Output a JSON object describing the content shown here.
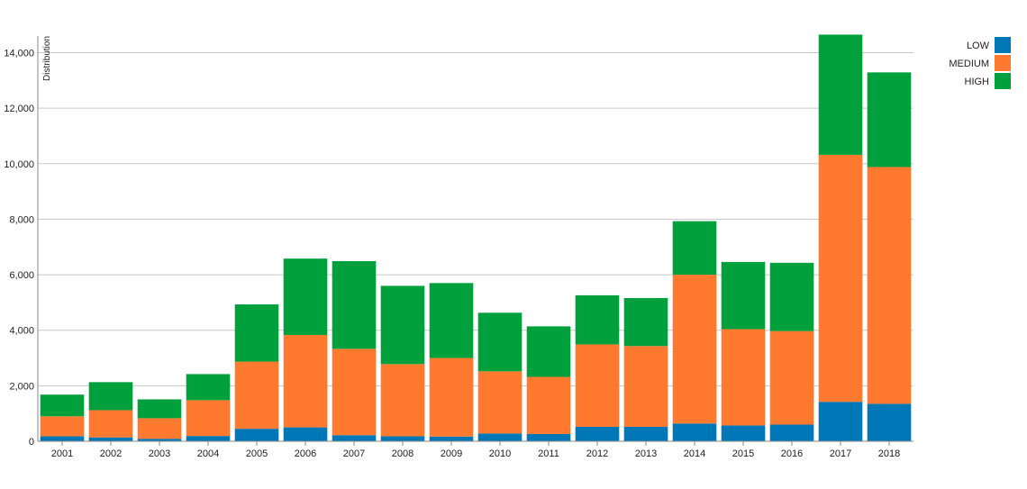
{
  "chart_data": {
    "type": "bar",
    "stacked": true,
    "categories": [
      "2001",
      "2002",
      "2003",
      "2004",
      "2005",
      "2006",
      "2007",
      "2008",
      "2009",
      "2010",
      "2011",
      "2012",
      "2013",
      "2014",
      "2015",
      "2016",
      "2017",
      "2018"
    ],
    "series": [
      {
        "name": "LOW",
        "color": "#0077b6",
        "values": [
          180,
          140,
          90,
          190,
          450,
          500,
          220,
          180,
          170,
          280,
          260,
          520,
          520,
          640,
          570,
          600,
          1420,
          1350
        ]
      },
      {
        "name": "MEDIUM",
        "color": "#ff7a2f",
        "values": [
          720,
          980,
          740,
          1290,
          2420,
          3330,
          3110,
          2600,
          2830,
          2240,
          2060,
          2970,
          2910,
          5360,
          3470,
          3370,
          8900,
          8530
        ]
      },
      {
        "name": "HIGH",
        "color": "#00a03c",
        "values": [
          780,
          1010,
          680,
          940,
          2060,
          2750,
          3160,
          2820,
          2700,
          2110,
          1820,
          1770,
          1730,
          1930,
          2420,
          2460,
          4330,
          3410
        ]
      }
    ],
    "ylabel": "Distribution",
    "ylim": [
      0,
      14600
    ],
    "yticks": [
      0,
      2000,
      4000,
      6000,
      8000,
      10000,
      12000,
      14000
    ],
    "ytick_labels": [
      "0",
      "2,000",
      "4,000",
      "6,000",
      "8,000",
      "10,000",
      "12,000",
      "14,000"
    ],
    "grid": true,
    "legend_position": "top-right"
  }
}
